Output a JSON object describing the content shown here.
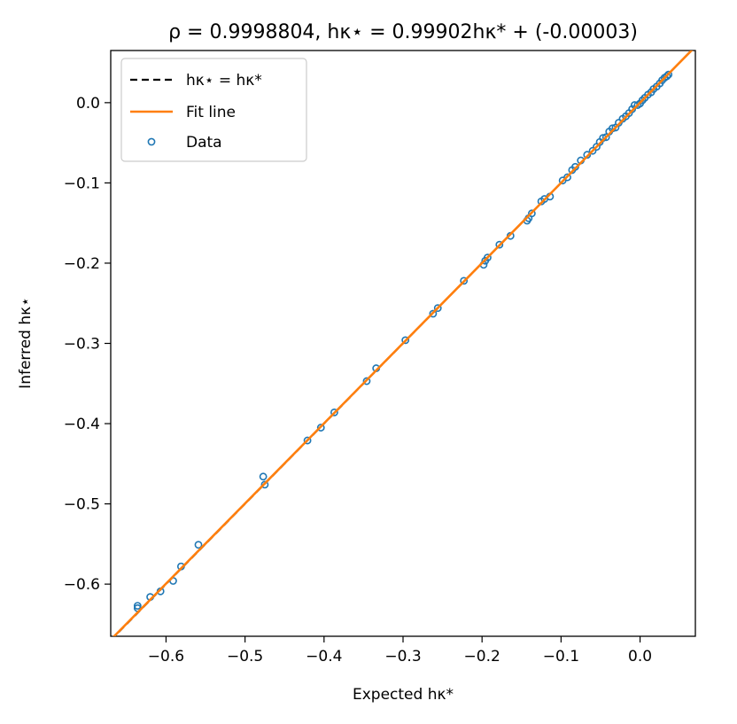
{
  "chart_data": {
    "type": "scatter",
    "title": "ρ = 0.9998804,   hκ⋆ = 0.99902hκ* + (-0.00003)",
    "xlabel": "Expected hκ*",
    "ylabel": "Inferred hκ⋆",
    "xlim": [
      -0.67,
      0.07
    ],
    "ylim": [
      -0.665,
      0.065
    ],
    "xticks": [
      -0.6,
      -0.5,
      -0.4,
      -0.3,
      -0.2,
      -0.1,
      0.0
    ],
    "xtick_labels": [
      "−0.6",
      "−0.5",
      "−0.4",
      "−0.3",
      "−0.2",
      "−0.1",
      "0.0"
    ],
    "yticks": [
      0.0,
      -0.1,
      -0.2,
      -0.3,
      -0.4,
      -0.5,
      -0.6
    ],
    "ytick_labels": [
      "0.0",
      "−0.1",
      "−0.2",
      "−0.3",
      "−0.4",
      "−0.5",
      "−0.6"
    ],
    "grid": false,
    "legend_position": "top-left",
    "legend": [
      {
        "label": "hκ⋆ = hκ*",
        "kind": "dashed-line",
        "color": "#000000"
      },
      {
        "label": "Fit line",
        "kind": "line",
        "color": "#ff7f0e"
      },
      {
        "label": "Data",
        "kind": "marker",
        "color": "#1f77b4"
      }
    ],
    "fit": {
      "slope": 0.99902,
      "intercept": -3e-05
    },
    "series": [
      {
        "name": "Data",
        "color": "#1f77b4",
        "points": [
          [
            -0.636,
            -0.63
          ],
          [
            -0.636,
            -0.627
          ],
          [
            -0.62,
            -0.616
          ],
          [
            -0.607,
            -0.609
          ],
          [
            -0.591,
            -0.596
          ],
          [
            -0.581,
            -0.578
          ],
          [
            -0.559,
            -0.551
          ],
          [
            -0.477,
            -0.466
          ],
          [
            -0.475,
            -0.476
          ],
          [
            -0.421,
            -0.421
          ],
          [
            -0.404,
            -0.405
          ],
          [
            -0.387,
            -0.386
          ],
          [
            -0.346,
            -0.347
          ],
          [
            -0.334,
            -0.331
          ],
          [
            -0.297,
            -0.296
          ],
          [
            -0.262,
            -0.263
          ],
          [
            -0.256,
            -0.256
          ],
          [
            -0.223,
            -0.222
          ],
          [
            -0.198,
            -0.202
          ],
          [
            -0.196,
            -0.197
          ],
          [
            -0.193,
            -0.193
          ],
          [
            -0.178,
            -0.177
          ],
          [
            -0.164,
            -0.166
          ],
          [
            -0.143,
            -0.147
          ],
          [
            -0.141,
            -0.144
          ],
          [
            -0.137,
            -0.138
          ],
          [
            -0.125,
            -0.123
          ],
          [
            -0.121,
            -0.12
          ],
          [
            -0.114,
            -0.117
          ],
          [
            -0.098,
            -0.097
          ],
          [
            -0.092,
            -0.093
          ],
          [
            -0.086,
            -0.084
          ],
          [
            -0.082,
            -0.08
          ],
          [
            -0.075,
            -0.072
          ],
          [
            -0.067,
            -0.065
          ],
          [
            -0.06,
            -0.06
          ],
          [
            -0.055,
            -0.055
          ],
          [
            -0.051,
            -0.049
          ],
          [
            -0.047,
            -0.044
          ],
          [
            -0.043,
            -0.043
          ],
          [
            -0.039,
            -0.036
          ],
          [
            -0.035,
            -0.032
          ],
          [
            -0.031,
            -0.031
          ],
          [
            -0.027,
            -0.025
          ],
          [
            -0.022,
            -0.02
          ],
          [
            -0.018,
            -0.017
          ],
          [
            -0.014,
            -0.013
          ],
          [
            -0.01,
            -0.008
          ],
          [
            -0.007,
            -0.003
          ],
          [
            -0.003,
            -0.003
          ],
          [
            0.0,
            -0.001
          ],
          [
            0.003,
            0.003
          ],
          [
            0.006,
            0.006
          ],
          [
            0.01,
            0.01
          ],
          [
            0.014,
            0.013
          ],
          [
            0.017,
            0.017
          ],
          [
            0.021,
            0.02
          ],
          [
            0.025,
            0.024
          ],
          [
            0.028,
            0.028
          ],
          [
            0.031,
            0.031
          ],
          [
            0.034,
            0.033
          ],
          [
            0.036,
            0.035
          ]
        ]
      }
    ]
  }
}
